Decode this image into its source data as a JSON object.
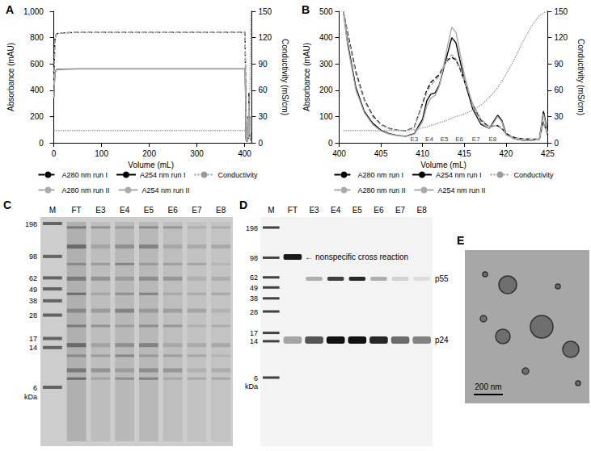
{
  "chart_data": [
    {
      "type": "line",
      "title": "A",
      "x_label": "Volume (mL)",
      "y_label": "Absorbance (mAU)",
      "y2_label": "Conductivity (mS/cm)",
      "xlim": [
        -8,
        415
      ],
      "xticks": [
        0,
        100,
        200,
        300,
        400
      ],
      "ylim": [
        0,
        1000
      ],
      "yticks": [
        0,
        200,
        400,
        600,
        800,
        1000
      ],
      "y2lim": [
        0,
        150
      ],
      "y2ticks": [
        0,
        30,
        60,
        90,
        120,
        150
      ],
      "grid": false,
      "legend": "bottom",
      "x": [
        0,
        2,
        5,
        10,
        50,
        100,
        200,
        300,
        398,
        401,
        402,
        403,
        405,
        407,
        408,
        409,
        410,
        411,
        412,
        413,
        415
      ],
      "series": [
        {
          "name": "A280 nm run I",
          "color": "#000000",
          "line_style": "dashed",
          "values": [
            450,
            780,
            825,
            835,
            840,
            840,
            840,
            840,
            840,
            840,
            500,
            30,
            10,
            200,
            40,
            380,
            60,
            200,
            30,
            30,
            30
          ]
        },
        {
          "name": "A254 nm run I",
          "color": "#000000",
          "line_style": "solid",
          "values": [
            350,
            530,
            555,
            560,
            562,
            562,
            562,
            562,
            562,
            562,
            350,
            20,
            8,
            150,
            30,
            300,
            50,
            150,
            20,
            20,
            20
          ]
        },
        {
          "name": "Conductivity",
          "color": "#999999",
          "line_style": "dotted",
          "axis": "y2",
          "values": [
            14,
            14,
            14,
            14,
            14,
            14,
            14,
            14,
            14,
            14,
            14,
            14,
            14,
            13,
            13,
            14,
            16,
            50,
            110,
            150,
            150
          ]
        },
        {
          "name": "A280 nm run II",
          "color": "#aaaaaa",
          "line_style": "dashed",
          "values": [
            440,
            775,
            822,
            834,
            839,
            839,
            839,
            839,
            839,
            839,
            520,
            35,
            12,
            190,
            45,
            360,
            70,
            190,
            35,
            30,
            30
          ]
        },
        {
          "name": "A254 nm run II",
          "color": "#aaaaaa",
          "line_style": "solid",
          "values": [
            345,
            528,
            554,
            559,
            561,
            561,
            561,
            561,
            561,
            561,
            360,
            22,
            9,
            140,
            35,
            280,
            60,
            140,
            25,
            20,
            20
          ]
        }
      ]
    },
    {
      "type": "line",
      "title": "B",
      "x_label": "Volume (mL)",
      "y_label": "Absorbance (mAU)",
      "y2_label": "Conductivity (mS/cm)",
      "xlim": [
        400,
        425
      ],
      "xticks": [
        400,
        405,
        410,
        415,
        420,
        425
      ],
      "ylim": [
        0,
        500
      ],
      "yticks": [
        0,
        100,
        200,
        300,
        400,
        500
      ],
      "y2lim": [
        0,
        150
      ],
      "y2ticks": [
        0,
        30,
        60,
        90,
        120,
        150
      ],
      "grid": false,
      "legend": "bottom",
      "x": [
        400.5,
        401,
        402,
        403,
        404,
        405,
        406,
        407,
        408,
        409,
        410,
        410.5,
        411,
        411.5,
        412,
        412.5,
        413,
        413.5,
        414,
        414.5,
        415,
        416,
        417,
        418,
        418.5,
        419,
        419.5,
        420,
        421,
        422,
        423,
        424,
        424.5,
        425
      ],
      "series": [
        {
          "name": "A280 nm run I",
          "color": "#000000",
          "line_style": "dashed",
          "values": [
            500,
            420,
            270,
            165,
            105,
            70,
            55,
            48,
            45,
            60,
            150,
            200,
            230,
            245,
            260,
            290,
            315,
            325,
            315,
            280,
            235,
            145,
            85,
            60,
            65,
            65,
            55,
            35,
            20,
            15,
            14,
            14,
            80,
            30
          ]
        },
        {
          "name": "A254 nm run I",
          "color": "#000000",
          "line_style": "solid",
          "values": [
            500,
            380,
            210,
            120,
            75,
            48,
            35,
            28,
            25,
            35,
            90,
            160,
            185,
            190,
            220,
            280,
            340,
            400,
            380,
            310,
            240,
            130,
            70,
            55,
            80,
            105,
            85,
            35,
            15,
            10,
            10,
            12,
            120,
            40
          ]
        },
        {
          "name": "Conductivity",
          "color": "#999999",
          "line_style": "dotted",
          "axis": "y2",
          "values": [
            14,
            14,
            14,
            14,
            14,
            14,
            14,
            14,
            14,
            15,
            17,
            18,
            20,
            21,
            23,
            24,
            26,
            28,
            30,
            31,
            33,
            37,
            43,
            52,
            57,
            63,
            70,
            78,
            95,
            115,
            132,
            145,
            148,
            150
          ]
        },
        {
          "name": "A280 nm run II",
          "color": "#aaaaaa",
          "line_style": "dashed",
          "values": [
            500,
            410,
            260,
            160,
            100,
            68,
            53,
            47,
            44,
            58,
            145,
            190,
            220,
            235,
            255,
            285,
            320,
            335,
            320,
            285,
            240,
            150,
            90,
            62,
            65,
            64,
            53,
            33,
            19,
            14,
            13,
            13,
            75,
            28
          ]
        },
        {
          "name": "A254 nm run II",
          "color": "#aaaaaa",
          "line_style": "solid",
          "values": [
            500,
            370,
            200,
            115,
            70,
            45,
            33,
            27,
            24,
            33,
            80,
            140,
            170,
            180,
            215,
            290,
            370,
            440,
            420,
            340,
            260,
            140,
            75,
            55,
            75,
            100,
            80,
            30,
            15,
            10,
            10,
            12,
            110,
            35
          ]
        }
      ],
      "annotations": [
        {
          "x": 409,
          "y": 15,
          "label": "E3"
        },
        {
          "x": 410.8,
          "y": 15,
          "label": "E4"
        },
        {
          "x": 412.6,
          "y": 15,
          "label": "E5"
        },
        {
          "x": 414.4,
          "y": 15,
          "label": "E6"
        },
        {
          "x": 416.4,
          "y": 15,
          "label": "E7"
        },
        {
          "x": 418.4,
          "y": 15,
          "label": "E8"
        }
      ]
    }
  ],
  "panels": {
    "C": {
      "label": "C",
      "lanes": [
        "M",
        "FT",
        "E3",
        "E4",
        "E5",
        "E6",
        "E7",
        "E8"
      ],
      "markers": [
        198,
        98,
        62,
        49,
        38,
        28,
        17,
        14,
        6
      ],
      "marker_unit": "kDa"
    },
    "D": {
      "label": "D",
      "lanes": [
        "M",
        "FT",
        "E3",
        "E4",
        "E5",
        "E6",
        "E7",
        "E8"
      ],
      "markers": [
        198,
        98,
        62,
        49,
        38,
        28,
        17,
        14,
        6
      ],
      "marker_unit": "kDa",
      "annotations": {
        "cross_reaction": "← nonspecific cross reaction",
        "p55": "p55",
        "p24": "p24"
      }
    },
    "E": {
      "label": "E",
      "scale_bar": "200 nm"
    }
  }
}
